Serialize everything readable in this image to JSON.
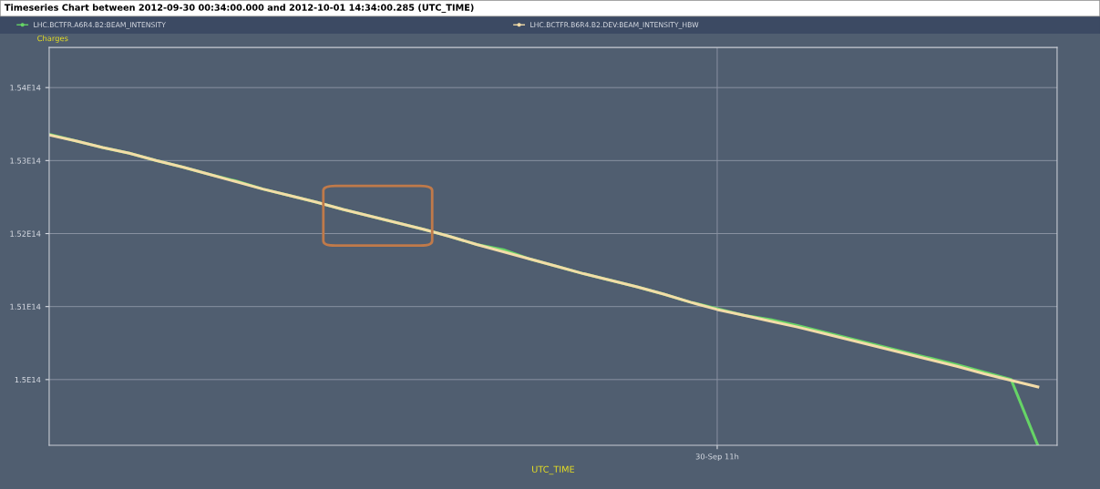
{
  "chart_data": {
    "type": "line",
    "title": "Timeseries Chart between 2012-09-30 00:34:00.000 and 2012-10-01 14:34:00.285 (UTC_TIME)",
    "xlabel": "UTC_TIME",
    "ylabel": "Charges",
    "categories": [
      null,
      null,
      null,
      null,
      null,
      null,
      null,
      null,
      null,
      null,
      null,
      null,
      null,
      null,
      null,
      null,
      null,
      null,
      null,
      null,
      null,
      null,
      null,
      null,
      null,
      "30-Sep 11h",
      null,
      null,
      null,
      null,
      null,
      null,
      null,
      null,
      null,
      null,
      null,
      null
    ],
    "series": [
      {
        "name": "LHC.BCTFR.A6R4.B2:BEAM_INTENSITY",
        "color": "#66d466",
        "values": [
          153360000000000.0,
          153270000000000.0,
          153180000000000.0,
          153100000000000.0,
          153000000000000.0,
          152910000000000.0,
          152810000000000.0,
          152720000000000.0,
          152610000000000.0,
          152520000000000.0,
          152430000000000.0,
          152330000000000.0,
          152240000000000.0,
          152150000000000.0,
          152060000000000.0,
          151960000000000.0,
          151850000000000.0,
          151780000000000.0,
          151650000000000.0,
          151550000000000.0,
          151450000000000.0,
          151360000000000.0,
          151270000000000.0,
          151170000000000.0,
          151060000000000.0,
          150970000000000.0,
          150880000000000.0,
          150820000000000.0,
          150740000000000.0,
          150650000000000.0,
          150560000000000.0,
          150470000000000.0,
          150380000000000.0,
          150290000000000.0,
          150200000000000.0,
          150100000000000.0,
          150000000000000.0,
          149100000000000.0
        ]
      },
      {
        "name": "LHC.BCTFR.B6R4.B2.DEV:BEAM_INTENSITY_HBW",
        "color": "#f3dca8",
        "values": [
          153350000000000.0,
          153270000000000.0,
          153180000000000.0,
          153100000000000.0,
          153000000000000.0,
          152910000000000.0,
          152810000000000.0,
          152710000000000.0,
          152610000000000.0,
          152520000000000.0,
          152430000000000.0,
          152330000000000.0,
          152240000000000.0,
          152150000000000.0,
          152060000000000.0,
          151960000000000.0,
          151850000000000.0,
          151750000000000.0,
          151650000000000.0,
          151550000000000.0,
          151450000000000.0,
          151360000000000.0,
          151270000000000.0,
          151170000000000.0,
          151060000000000.0,
          150960000000000.0,
          150880000000000.0,
          150800000000000.0,
          150720000000000.0,
          150630000000000.0,
          150540000000000.0,
          150450000000000.0,
          150360000000000.0,
          150270000000000.0,
          150180000000000.0,
          150080000000000.0,
          149990000000000.0,
          149900000000000.0
        ]
      }
    ],
    "ylim": [
      149100000000000.0,
      154550000000000.0
    ],
    "yticks": [
      {
        "value": 150000000000000.0,
        "label": "1.5E14"
      },
      {
        "value": 151000000000000.0,
        "label": "1.51E14"
      },
      {
        "value": 152000000000000.0,
        "label": "1.52E14"
      },
      {
        "value": 153000000000000.0,
        "label": "1.53E14"
      },
      {
        "value": 154000000000000.0,
        "label": "1.54E14"
      }
    ],
    "grid": true,
    "legend": "top",
    "marker": "none",
    "line_style": "solid"
  }
}
